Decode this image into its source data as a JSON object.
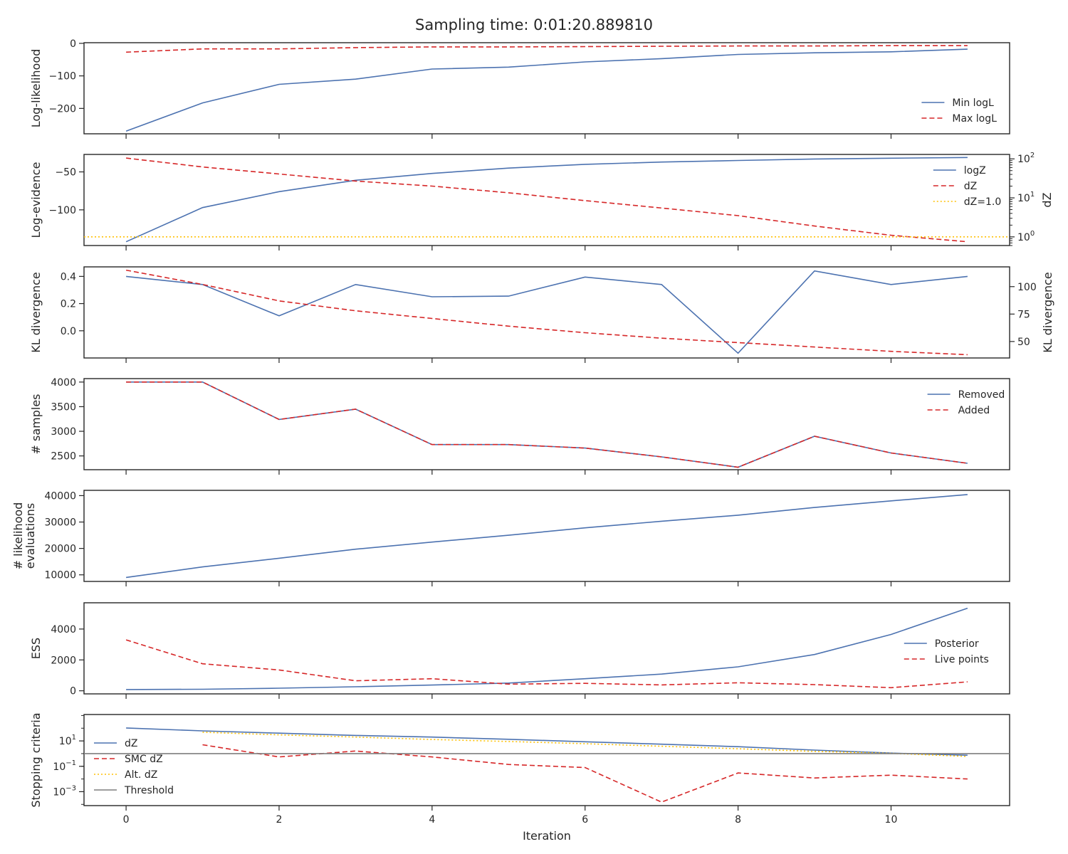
{
  "title": "Sampling time: 0:01:20.889810",
  "xlabel": "Iteration",
  "x_ticks": [
    0,
    2,
    4,
    6,
    8,
    10
  ],
  "xlim": [
    -0.55,
    11.55
  ],
  "colors": {
    "blue": "#4c72b0",
    "red": "#d62728",
    "gold": "#ffc107",
    "gray": "#7f7f7f"
  },
  "chart_data": [
    {
      "type": "line",
      "ylabel": "Log-likelihood",
      "ylim": [
        -278,
        2
      ],
      "y_ticks": [
        0,
        -100,
        -200
      ],
      "y_tick_labels": [
        "0",
        "−100",
        "−200"
      ],
      "legend_position": "lower-right",
      "series": [
        {
          "name": "Min logL",
          "color": "blue",
          "style": "solid",
          "x": [
            0,
            1,
            2,
            3,
            4,
            5,
            6,
            7,
            8,
            9,
            10,
            11
          ],
          "values": [
            -270,
            -183,
            -126,
            -110,
            -79,
            -73,
            -57,
            -47,
            -34,
            -29,
            -26,
            -18
          ]
        },
        {
          "name": "Max logL",
          "color": "red",
          "style": "dashed",
          "x": [
            0,
            1,
            2,
            3,
            4,
            5,
            6,
            7,
            8,
            9,
            10,
            11
          ],
          "values": [
            -27,
            -17,
            -17,
            -13,
            -11,
            -11,
            -10,
            -9,
            -8,
            -8,
            -7,
            -7
          ]
        }
      ]
    },
    {
      "type": "line",
      "ylabel": "Log-evidence",
      "ylim": [
        -147,
        -27
      ],
      "y_ticks": [
        -50,
        -100
      ],
      "y_tick_labels": [
        "−50",
        "−100"
      ],
      "y2label": "dZ",
      "y2_log": true,
      "y2lim": [
        0.6,
        130
      ],
      "y2_ticks": [
        1,
        10,
        100
      ],
      "y2_tick_labels": [
        "10^0",
        "10^1",
        "10^2"
      ],
      "legend_position": "upper-right",
      "series": [
        {
          "name": "logZ",
          "color": "blue",
          "style": "solid",
          "axis": "left",
          "x": [
            0,
            1,
            2,
            3,
            4,
            5,
            6,
            7,
            8,
            9,
            10,
            11
          ],
          "values": [
            -142,
            -97,
            -76,
            -61,
            -52,
            -45,
            -40,
            -37,
            -35,
            -33,
            -32,
            -31
          ]
        },
        {
          "name": "dZ",
          "color": "red",
          "style": "dashed",
          "axis": "right",
          "x": [
            0,
            1,
            2,
            3,
            4,
            5,
            6,
            7,
            8,
            9,
            10,
            11
          ],
          "values": [
            105,
            62,
            41,
            27,
            20,
            13.5,
            8.5,
            5.5,
            3.5,
            1.9,
            1.1,
            0.75
          ]
        },
        {
          "name": "dZ=1.0",
          "color": "gold",
          "style": "dotted",
          "axis": "right",
          "hline": 1.0
        }
      ]
    },
    {
      "type": "line",
      "ylabel": "KL divergence",
      "ylim": [
        -0.2,
        0.47
      ],
      "y_ticks": [
        0.4,
        0.2,
        0.0
      ],
      "y_tick_labels": [
        "0.4",
        "0.2",
        "0.0"
      ],
      "y2label": "KL divergence",
      "y2lim": [
        35,
        118
      ],
      "y2_ticks": [
        100,
        75,
        50
      ],
      "y2_tick_labels": [
        "100",
        "75",
        "50"
      ],
      "series": [
        {
          "color": "blue",
          "style": "solid",
          "axis": "left",
          "x": [
            0,
            1,
            2,
            3,
            4,
            5,
            6,
            7,
            8,
            9,
            10,
            11
          ],
          "values": [
            0.4,
            0.34,
            0.11,
            0.34,
            0.25,
            0.255,
            0.395,
            0.34,
            -0.165,
            0.44,
            0.34,
            0.4
          ]
        },
        {
          "color": "red",
          "style": "dashed",
          "axis": "right",
          "x": [
            0,
            1,
            2,
            3,
            4,
            5,
            6,
            7,
            8,
            9,
            10,
            11
          ],
          "values": [
            115,
            102,
            87,
            78,
            71,
            64,
            58,
            53,
            49,
            45,
            41,
            38
          ]
        }
      ]
    },
    {
      "type": "line",
      "ylabel": "# samples",
      "ylim": [
        2220,
        4070
      ],
      "y_ticks": [
        4000,
        3500,
        3000,
        2500
      ],
      "y_tick_labels": [
        "4000",
        "3500",
        "3000",
        "2500"
      ],
      "legend_position": "upper-right",
      "series": [
        {
          "name": "Removed",
          "color": "blue",
          "style": "solid",
          "x": [
            0,
            1,
            2,
            3,
            4,
            5,
            6,
            7,
            8,
            9,
            10,
            11
          ],
          "values": [
            4000,
            4000,
            3240,
            3450,
            2730,
            2730,
            2660,
            2480,
            2270,
            2900,
            2560,
            2350
          ]
        },
        {
          "name": "Added",
          "color": "red",
          "style": "dashed",
          "x": [
            0,
            1,
            2,
            3,
            4,
            5,
            6,
            7,
            8,
            9,
            10,
            11
          ],
          "values": [
            4000,
            4000,
            3240,
            3450,
            2730,
            2730,
            2660,
            2480,
            2270,
            2900,
            2560,
            2350
          ]
        }
      ]
    },
    {
      "type": "line",
      "ylabel": "# likelihood\nevaluations",
      "ylim": [
        7500,
        42000
      ],
      "y_ticks": [
        40000,
        30000,
        20000,
        10000
      ],
      "y_tick_labels": [
        "40000",
        "30000",
        "20000",
        "10000"
      ],
      "series": [
        {
          "color": "blue",
          "style": "solid",
          "x": [
            0,
            1,
            2,
            3,
            4,
            5,
            6,
            7,
            8,
            9,
            10,
            11
          ],
          "values": [
            9000,
            13000,
            16300,
            19700,
            22400,
            25000,
            27800,
            30300,
            32600,
            35500,
            38000,
            40400
          ]
        }
      ]
    },
    {
      "type": "line",
      "ylabel": "ESS",
      "ylim": [
        -200,
        5700
      ],
      "y_ticks": [
        4000,
        2000,
        0
      ],
      "y_tick_labels": [
        "4000",
        "2000",
        "0"
      ],
      "legend_position": "center-right",
      "series": [
        {
          "name": "Posterior",
          "color": "blue",
          "style": "solid",
          "x": [
            0,
            1,
            2,
            3,
            4,
            5,
            6,
            7,
            8,
            9,
            10,
            11
          ],
          "values": [
            80,
            100,
            170,
            260,
            370,
            500,
            780,
            1080,
            1550,
            2350,
            3650,
            5350
          ]
        },
        {
          "name": "Live points",
          "color": "red",
          "style": "dashed",
          "x": [
            0,
            1,
            2,
            3,
            4,
            5,
            6,
            7,
            8,
            9,
            10,
            11
          ],
          "values": [
            3300,
            1750,
            1350,
            650,
            780,
            430,
            480,
            380,
            520,
            400,
            200,
            580
          ]
        }
      ]
    },
    {
      "type": "line",
      "ylabel": "Stopping criteria",
      "y_log": true,
      "ylim": [
        8e-05,
        1200
      ],
      "y_ticks": [
        10,
        0.1,
        0.001
      ],
      "y_tick_labels": [
        "10^1",
        "10^-1",
        "10^-3"
      ],
      "legend_position": "left",
      "series": [
        {
          "name": "dZ",
          "color": "blue",
          "style": "solid",
          "x": [
            0,
            1,
            2,
            3,
            4,
            5,
            6,
            7,
            8,
            9,
            10,
            11
          ],
          "values": [
            105,
            62,
            41,
            27,
            20,
            13.5,
            8.5,
            5.5,
            3.5,
            1.9,
            1.1,
            0.75
          ]
        },
        {
          "name": "SMC dZ",
          "color": "red",
          "style": "dashed",
          "x": [
            1,
            2,
            3,
            4,
            5,
            6,
            7,
            8,
            9,
            10,
            11
          ],
          "values": [
            5.0,
            0.55,
            1.6,
            0.55,
            0.14,
            0.08,
            0.00015,
            0.03,
            0.012,
            0.02,
            0.01
          ]
        },
        {
          "name": "Alt. dZ",
          "color": "gold",
          "style": "dotted",
          "x": [
            1,
            2,
            3,
            4,
            5,
            6,
            7,
            8,
            9,
            10,
            11
          ],
          "values": [
            48,
            30,
            20,
            13,
            9,
            6,
            3.8,
            2.4,
            1.5,
            1.05,
            0.6
          ]
        },
        {
          "name": "Threshold",
          "color": "gray",
          "style": "solid",
          "hline": 1.0
        }
      ]
    }
  ]
}
